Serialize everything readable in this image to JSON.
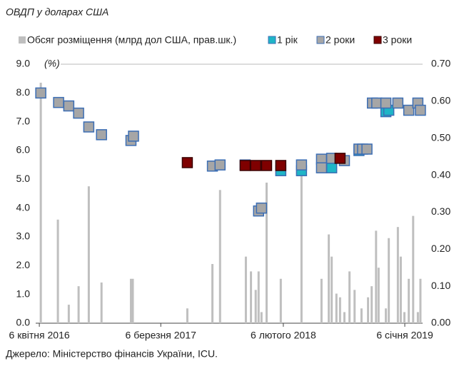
{
  "chart_data": {
    "type": "scatter",
    "title": "ОВДП у доларах США",
    "y_label": "(%)",
    "source": "Джерело: Міністерство фінансів України, ICU.",
    "xlim": [
      "2016-03-27",
      "2019-02-24"
    ],
    "xticks": [
      {
        "value": "2016-04-06",
        "label": "6 квітня 2016"
      },
      {
        "value": "2017-03-06",
        "label": "6 березня 2017"
      },
      {
        "value": "2018-02-06",
        "label": "6 лютого 2018"
      },
      {
        "value": "2019-01-06",
        "label": "6 січня 2019"
      }
    ],
    "ylim": [
      0,
      9
    ],
    "yticks": [
      {
        "value": 0,
        "label": "0.0"
      },
      {
        "value": 1,
        "label": "1.0"
      },
      {
        "value": 2,
        "label": "2.0"
      },
      {
        "value": 3,
        "label": "3.0"
      },
      {
        "value": 4,
        "label": "4.0"
      },
      {
        "value": 5,
        "label": "5.0"
      },
      {
        "value": 6,
        "label": "6.0"
      },
      {
        "value": 7,
        "label": "7.0"
      },
      {
        "value": 8,
        "label": "8.0"
      },
      {
        "value": 9,
        "label": "9.0"
      }
    ],
    "y2lim": [
      0,
      0.7
    ],
    "y2ticks": [
      {
        "value": 0,
        "label": "0.00"
      },
      {
        "value": 0.1,
        "label": "0.10"
      },
      {
        "value": 0.2,
        "label": "0.20"
      },
      {
        "value": 0.3,
        "label": "0.30"
      },
      {
        "value": 0.4,
        "label": "0.40"
      },
      {
        "value": 0.5,
        "label": "0.50"
      },
      {
        "value": 0.6,
        "label": "0.60"
      },
      {
        "value": 0.7,
        "label": "0.70"
      }
    ],
    "series": [
      {
        "name": "Обсяг розміщення (млрд дол США, прав.шк.)",
        "type": "bar",
        "axis": "y2",
        "color": "#bfbfbf",
        "x": [
          "2016-04-10",
          "2016-05-27",
          "2016-06-26",
          "2016-07-23",
          "2016-08-20",
          "2016-09-24",
          "2016-12-14",
          "2016-12-19",
          "2017-05-18",
          "2017-07-26",
          "2017-08-16",
          "2017-10-26",
          "2017-11-09",
          "2017-11-22",
          "2017-11-30",
          "2017-12-08",
          "2017-12-22",
          "2018-01-30",
          "2018-03-28",
          "2018-05-22",
          "2018-06-11",
          "2018-06-19",
          "2018-07-02",
          "2018-07-12",
          "2018-07-24",
          "2018-08-07",
          "2018-08-21",
          "2018-09-09",
          "2018-09-27",
          "2018-10-07",
          "2018-10-19",
          "2018-10-26",
          "2018-11-15",
          "2018-11-23",
          "2018-12-18",
          "2018-12-26",
          "2019-01-05",
          "2019-01-17",
          "2019-01-29",
          "2019-02-11",
          "2019-02-18"
        ],
        "values": [
          0.65,
          0.28,
          0.05,
          0.1,
          0.37,
          0.11,
          0.12,
          0.12,
          0.04,
          0.16,
          0.36,
          0.18,
          0.14,
          0.09,
          0.14,
          0.03,
          0.38,
          0.12,
          0.4,
          0.12,
          0.24,
          0.18,
          0.08,
          0.07,
          0.03,
          0.14,
          0.09,
          0.04,
          0.07,
          0.1,
          0.25,
          0.15,
          0.04,
          0.23,
          0.26,
          0.18,
          0.03,
          0.12,
          0.29,
          0.03,
          0.12
        ]
      },
      {
        "name": "1 рік",
        "type": "scatter",
        "color": "#1fb5c7",
        "x": [
          "2018-01-30",
          "2018-03-28",
          "2018-06-19",
          "2018-09-02",
          "2018-11-15",
          "2018-11-23"
        ],
        "values": [
          5.3,
          5.3,
          5.4,
          6.0,
          7.35,
          7.4
        ]
      },
      {
        "name": "2 роки",
        "type": "scatter",
        "color": "#a6a6a6",
        "x": [
          "2016-04-10",
          "2016-05-29",
          "2016-06-26",
          "2016-07-23",
          "2016-08-20",
          "2016-09-24",
          "2016-12-14",
          "2016-12-21",
          "2017-07-26",
          "2017-08-16",
          "2017-10-24",
          "2017-11-30",
          "2017-12-08",
          "2018-03-28",
          "2018-05-22",
          "2018-05-22",
          "2018-06-19",
          "2018-07-24",
          "2018-09-02",
          "2018-09-12",
          "2018-09-24",
          "2018-10-09",
          "2018-10-21",
          "2018-11-15",
          "2018-12-18",
          "2019-01-17",
          "2019-02-11",
          "2019-02-18"
        ],
        "values": [
          8.0,
          7.67,
          7.55,
          7.3,
          6.82,
          6.55,
          6.35,
          6.5,
          5.46,
          5.5,
          5.5,
          3.9,
          4.0,
          5.5,
          5.7,
          5.4,
          5.73,
          5.65,
          6.05,
          6.05,
          6.05,
          7.65,
          7.65,
          7.65,
          7.65,
          7.4,
          7.65,
          7.4
        ]
      },
      {
        "name": "3 роки",
        "type": "scatter",
        "color": "#7f0000",
        "x": [
          "2017-05-18",
          "2017-10-24",
          "2017-11-22",
          "2017-12-22",
          "2018-01-30",
          "2018-07-12"
        ],
        "values": [
          5.58,
          5.48,
          5.48,
          5.48,
          5.48,
          5.73
        ]
      }
    ]
  }
}
